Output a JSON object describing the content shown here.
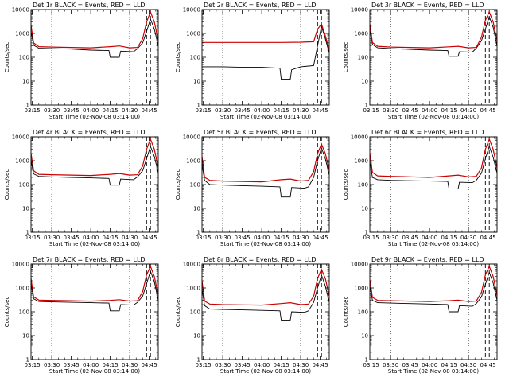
{
  "chart_data": [
    {
      "type": "line",
      "title": "Det 1r BLACK = Events, RED = LLD",
      "xlabel": "Start Time (02-Nov-08 03:14:00)",
      "ylabel": "Counts/sec",
      "xlim": [
        "03:14",
        "04:52"
      ],
      "ylim": [
        1,
        10000
      ],
      "yscale": "log",
      "xticks": [
        "03:15",
        "03:30",
        "03:45",
        "04:00",
        "04:15",
        "04:30",
        "04:45"
      ],
      "yticks": [
        "1",
        "10",
        "100",
        "1000",
        "10000"
      ],
      "dotted_vlines": [
        "03:30",
        "04:30"
      ],
      "dashed_vlines": [
        "04:43",
        "04:46"
      ],
      "series": [
        {
          "color": "#000000",
          "x": [
            "03:14",
            "03:16",
            "03:20",
            "03:30",
            "03:45",
            "04:00",
            "04:14",
            "04:15",
            "04:22",
            "04:23",
            "04:33",
            "04:36",
            "04:40",
            "04:43",
            "04:46",
            "04:49",
            "04:52"
          ],
          "values": [
            1200,
            320,
            240,
            230,
            220,
            200,
            190,
            100,
            100,
            180,
            170,
            230,
            400,
            1200,
            4000,
            1500,
            300
          ]
        },
        {
          "color": "#cc0000",
          "x": [
            "03:14",
            "03:16",
            "03:20",
            "03:30",
            "03:45",
            "04:00",
            "04:15",
            "04:22",
            "04:30",
            "04:36",
            "04:40",
            "04:43",
            "04:46",
            "04:49",
            "04:52"
          ],
          "values": [
            2200,
            400,
            280,
            270,
            260,
            250,
            280,
            300,
            250,
            260,
            600,
            3000,
            8000,
            3000,
            500
          ]
        }
      ]
    },
    {
      "type": "line",
      "title": "Det 2r BLACK = Events, RED = LLD",
      "xlabel": "Start Time (02-Nov-08 03:14:00)",
      "ylabel": "Counts/sec",
      "xlim": [
        "03:14",
        "04:52"
      ],
      "ylim": [
        1,
        10000
      ],
      "yscale": "log",
      "xticks": [
        "03:15",
        "03:30",
        "03:45",
        "04:00",
        "04:15",
        "04:30",
        "04:45"
      ],
      "yticks": [
        "1",
        "10",
        "100",
        "1000",
        "10000"
      ],
      "dotted_vlines": [
        "03:30",
        "04:30"
      ],
      "dashed_vlines": [
        "04:43",
        "04:46"
      ],
      "series": [
        {
          "color": "#000000",
          "x": [
            "03:14",
            "03:16",
            "03:30",
            "03:45",
            "04:00",
            "04:14",
            "04:15",
            "04:22",
            "04:23",
            "04:30",
            "04:40",
            "04:43",
            "04:46",
            "04:49",
            "04:52"
          ],
          "values": [
            40,
            40,
            40,
            38,
            38,
            35,
            12,
            12,
            30,
            40,
            45,
            300,
            2000,
            600,
            150
          ]
        },
        {
          "color": "#cc0000",
          "x": [
            "03:14",
            "03:16",
            "03:30",
            "03:45",
            "04:00",
            "04:15",
            "04:30",
            "04:40",
            "04:43",
            "04:46",
            "04:49",
            "04:52"
          ],
          "values": [
            420,
            420,
            420,
            420,
            420,
            420,
            430,
            450,
            1500,
            2500,
            800,
            200
          ]
        }
      ]
    },
    {
      "type": "line",
      "title": "Det 3r BLACK = Events, RED = LLD",
      "xlabel": "Start Time (02-Nov-08 03:14:00)",
      "ylabel": "Counts/sec",
      "xlim": [
        "03:14",
        "04:52"
      ],
      "ylim": [
        1,
        10000
      ],
      "yscale": "log",
      "xticks": [
        "03:15",
        "03:30",
        "03:45",
        "04:00",
        "04:15",
        "04:30",
        "04:45"
      ],
      "yticks": [
        "1",
        "10",
        "100",
        "1000",
        "10000"
      ],
      "dotted_vlines": [
        "03:30",
        "04:30"
      ],
      "dashed_vlines": [
        "04:43",
        "04:46"
      ],
      "series": [
        {
          "color": "#000000",
          "x": [
            "03:14",
            "03:16",
            "03:20",
            "03:30",
            "03:45",
            "04:00",
            "04:14",
            "04:15",
            "04:22",
            "04:23",
            "04:33",
            "04:36",
            "04:40",
            "04:43",
            "04:46",
            "04:49",
            "04:52"
          ],
          "values": [
            1500,
            350,
            250,
            230,
            215,
            200,
            190,
            110,
            110,
            170,
            165,
            240,
            500,
            1500,
            5000,
            1800,
            300
          ]
        },
        {
          "color": "#cc0000",
          "x": [
            "03:14",
            "03:16",
            "03:20",
            "03:30",
            "03:45",
            "04:00",
            "04:15",
            "04:22",
            "04:30",
            "04:36",
            "04:40",
            "04:43",
            "04:46",
            "04:49",
            "04:52"
          ],
          "values": [
            2500,
            420,
            290,
            270,
            260,
            250,
            275,
            290,
            250,
            260,
            700,
            3500,
            8000,
            3000,
            500
          ]
        }
      ]
    },
    {
      "type": "line",
      "title": "Det 4r BLACK = Events, RED = LLD",
      "xlabel": "Start Time (02-Nov-08 03:14:00)",
      "ylabel": "Counts/sec",
      "xlim": [
        "03:14",
        "04:52"
      ],
      "ylim": [
        1,
        10000
      ],
      "yscale": "log",
      "xticks": [
        "03:15",
        "03:30",
        "03:45",
        "04:00",
        "04:15",
        "04:30",
        "04:45"
      ],
      "yticks": [
        "1",
        "10",
        "100",
        "1000",
        "10000"
      ],
      "dotted_vlines": [
        "03:30",
        "04:30"
      ],
      "dashed_vlines": [
        "04:43",
        "04:46"
      ],
      "series": [
        {
          "color": "#000000",
          "x": [
            "03:14",
            "03:16",
            "03:20",
            "03:30",
            "03:45",
            "04:00",
            "04:14",
            "04:15",
            "04:22",
            "04:23",
            "04:33",
            "04:36",
            "04:40",
            "04:43",
            "04:46",
            "04:49",
            "04:52"
          ],
          "values": [
            1000,
            280,
            220,
            210,
            200,
            190,
            180,
            95,
            95,
            170,
            160,
            210,
            380,
            1200,
            4000,
            1500,
            300
          ]
        },
        {
          "color": "#cc0000",
          "x": [
            "03:14",
            "03:16",
            "03:20",
            "03:30",
            "03:45",
            "04:00",
            "04:15",
            "04:22",
            "04:30",
            "04:36",
            "04:40",
            "04:43",
            "04:46",
            "04:49",
            "04:52"
          ],
          "values": [
            2000,
            380,
            270,
            260,
            250,
            240,
            270,
            290,
            250,
            260,
            600,
            3000,
            8000,
            3000,
            500
          ]
        }
      ]
    },
    {
      "type": "line",
      "title": "Det 5r BLACK = Events, RED = LLD",
      "xlabel": "Start Time (02-Nov-08 03:14:00)",
      "ylabel": "Counts/sec",
      "xlim": [
        "03:14",
        "04:52"
      ],
      "ylim": [
        1,
        10000
      ],
      "yscale": "log",
      "xticks": [
        "03:15",
        "03:30",
        "03:45",
        "04:00",
        "04:15",
        "04:30",
        "04:45"
      ],
      "yticks": [
        "1",
        "10",
        "100",
        "1000",
        "10000"
      ],
      "dotted_vlines": [
        "03:30",
        "04:30"
      ],
      "dashed_vlines": [
        "04:43",
        "04:46"
      ],
      "series": [
        {
          "color": "#000000",
          "x": [
            "03:14",
            "03:16",
            "03:20",
            "03:30",
            "03:45",
            "04:00",
            "04:14",
            "04:15",
            "04:22",
            "04:23",
            "04:33",
            "04:36",
            "04:40",
            "04:43",
            "04:46",
            "04:49",
            "04:52"
          ],
          "values": [
            700,
            150,
            100,
            95,
            90,
            85,
            80,
            30,
            30,
            75,
            70,
            80,
            200,
            1000,
            3500,
            1200,
            250
          ]
        },
        {
          "color": "#cc0000",
          "x": [
            "03:14",
            "03:16",
            "03:20",
            "03:30",
            "03:45",
            "04:00",
            "04:15",
            "04:22",
            "04:30",
            "04:36",
            "04:40",
            "04:43",
            "04:46",
            "04:49",
            "04:52"
          ],
          "values": [
            1500,
            200,
            150,
            140,
            135,
            130,
            160,
            170,
            140,
            150,
            350,
            2000,
            5000,
            2000,
            400
          ]
        }
      ]
    },
    {
      "type": "line",
      "title": "Det 6r BLACK = Events, RED = LLD",
      "xlabel": "Start Time (02-Nov-08 03:14:00)",
      "ylabel": "Counts/sec",
      "xlim": [
        "03:14",
        "04:52"
      ],
      "ylim": [
        1,
        10000
      ],
      "yscale": "log",
      "xticks": [
        "03:15",
        "03:30",
        "03:45",
        "04:00",
        "04:15",
        "04:30",
        "04:45"
      ],
      "yticks": [
        "1",
        "10",
        "100",
        "1000",
        "10000"
      ],
      "dotted_vlines": [
        "03:30",
        "04:30"
      ],
      "dashed_vlines": [
        "04:43",
        "04:46"
      ],
      "series": [
        {
          "color": "#000000",
          "x": [
            "03:14",
            "03:16",
            "03:20",
            "03:30",
            "03:45",
            "04:00",
            "04:14",
            "04:15",
            "04:22",
            "04:23",
            "04:33",
            "04:36",
            "04:40",
            "04:43",
            "04:46",
            "04:49",
            "04:52"
          ],
          "values": [
            900,
            200,
            160,
            150,
            145,
            140,
            135,
            65,
            65,
            125,
            120,
            150,
            300,
            1200,
            4000,
            1400,
            300
          ]
        },
        {
          "color": "#cc0000",
          "x": [
            "03:14",
            "03:16",
            "03:20",
            "03:30",
            "03:45",
            "04:00",
            "04:15",
            "04:22",
            "04:30",
            "04:36",
            "04:40",
            "04:43",
            "04:46",
            "04:49",
            "04:52"
          ],
          "values": [
            2000,
            320,
            230,
            220,
            210,
            200,
            230,
            250,
            210,
            220,
            500,
            3000,
            8000,
            3000,
            500
          ]
        }
      ]
    },
    {
      "type": "line",
      "title": "Det 7r BLACK = Events, RED = LLD",
      "xlabel": "Start Time (02-Nov-08 03:14:00)",
      "ylabel": "Counts/sec",
      "xlim": [
        "03:14",
        "04:52"
      ],
      "ylim": [
        1,
        10000
      ],
      "yscale": "log",
      "xticks": [
        "03:15",
        "03:30",
        "03:45",
        "04:00",
        "04:15",
        "04:30",
        "04:45"
      ],
      "yticks": [
        "1",
        "10",
        "100",
        "1000",
        "10000"
      ],
      "dotted_vlines": [
        "03:30",
        "04:30"
      ],
      "dashed_vlines": [
        "04:43",
        "04:46"
      ],
      "series": [
        {
          "color": "#000000",
          "x": [
            "03:14",
            "03:16",
            "03:20",
            "03:30",
            "03:45",
            "04:00",
            "04:14",
            "04:15",
            "04:22",
            "04:23",
            "04:33",
            "04:36",
            "04:40",
            "04:43",
            "04:46",
            "04:49",
            "04:52"
          ],
          "values": [
            1500,
            350,
            270,
            260,
            250,
            240,
            230,
            110,
            110,
            200,
            190,
            250,
            450,
            1500,
            5000,
            1800,
            300
          ]
        },
        {
          "color": "#cc0000",
          "x": [
            "03:14",
            "03:16",
            "03:20",
            "03:30",
            "03:45",
            "04:00",
            "04:15",
            "04:22",
            "04:30",
            "04:36",
            "04:40",
            "04:43",
            "04:46",
            "04:49",
            "04:52"
          ],
          "values": [
            2500,
            420,
            310,
            300,
            290,
            280,
            300,
            320,
            280,
            290,
            700,
            3500,
            8000,
            3000,
            500
          ]
        }
      ]
    },
    {
      "type": "line",
      "title": "Det 8r BLACK = Events, RED = LLD",
      "xlabel": "Start Time (02-Nov-08 03:14:00)",
      "ylabel": "Counts/sec",
      "xlim": [
        "03:14",
        "04:52"
      ],
      "ylim": [
        1,
        10000
      ],
      "yscale": "log",
      "xticks": [
        "03:15",
        "03:30",
        "03:45",
        "04:00",
        "04:15",
        "04:30",
        "04:45"
      ],
      "yticks": [
        "1",
        "10",
        "100",
        "1000",
        "10000"
      ],
      "dotted_vlines": [
        "03:30",
        "04:30"
      ],
      "dashed_vlines": [
        "04:43",
        "04:46"
      ],
      "series": [
        {
          "color": "#000000",
          "x": [
            "03:14",
            "03:16",
            "03:20",
            "03:30",
            "03:45",
            "04:00",
            "04:14",
            "04:15",
            "04:22",
            "04:23",
            "04:33",
            "04:36",
            "04:40",
            "04:43",
            "04:46",
            "04:49",
            "04:52"
          ],
          "values": [
            900,
            180,
            130,
            125,
            120,
            115,
            110,
            45,
            45,
            100,
            95,
            110,
            250,
            1000,
            3500,
            1200,
            250
          ]
        },
        {
          "color": "#cc0000",
          "x": [
            "03:14",
            "03:16",
            "03:20",
            "03:30",
            "03:45",
            "04:00",
            "04:15",
            "04:22",
            "04:30",
            "04:36",
            "04:40",
            "04:43",
            "04:46",
            "04:49",
            "04:52"
          ],
          "values": [
            2000,
            280,
            210,
            200,
            195,
            190,
            220,
            240,
            200,
            210,
            450,
            2500,
            6000,
            2500,
            450
          ]
        }
      ]
    },
    {
      "type": "line",
      "title": "Det 9r BLACK = Events, RED = LLD",
      "xlabel": "Start Time (02-Nov-08 03:14:00)",
      "ylabel": "Counts/sec",
      "xlim": [
        "03:14",
        "04:52"
      ],
      "ylim": [
        1,
        10000
      ],
      "yscale": "log",
      "xticks": [
        "03:15",
        "03:30",
        "03:45",
        "04:00",
        "04:15",
        "04:30",
        "04:45"
      ],
      "yticks": [
        "1",
        "10",
        "100",
        "1000",
        "10000"
      ],
      "dotted_vlines": [
        "03:30",
        "04:30"
      ],
      "dashed_vlines": [
        "04:43",
        "04:46"
      ],
      "series": [
        {
          "color": "#000000",
          "x": [
            "03:14",
            "03:16",
            "03:20",
            "03:30",
            "03:45",
            "04:00",
            "04:14",
            "04:15",
            "04:22",
            "04:23",
            "04:33",
            "04:36",
            "04:40",
            "04:43",
            "04:46",
            "04:49",
            "04:52"
          ],
          "values": [
            1200,
            300,
            240,
            230,
            220,
            210,
            200,
            100,
            100,
            180,
            170,
            220,
            420,
            1400,
            4500,
            1600,
            300
          ]
        },
        {
          "color": "#cc0000",
          "x": [
            "03:14",
            "03:16",
            "03:20",
            "03:30",
            "03:45",
            "04:00",
            "04:15",
            "04:22",
            "04:30",
            "04:36",
            "04:40",
            "04:43",
            "04:46",
            "04:49",
            "04:52"
          ],
          "values": [
            2200,
            400,
            300,
            290,
            280,
            270,
            290,
            310,
            270,
            280,
            650,
            3500,
            8000,
            3000,
            500
          ]
        }
      ]
    }
  ]
}
